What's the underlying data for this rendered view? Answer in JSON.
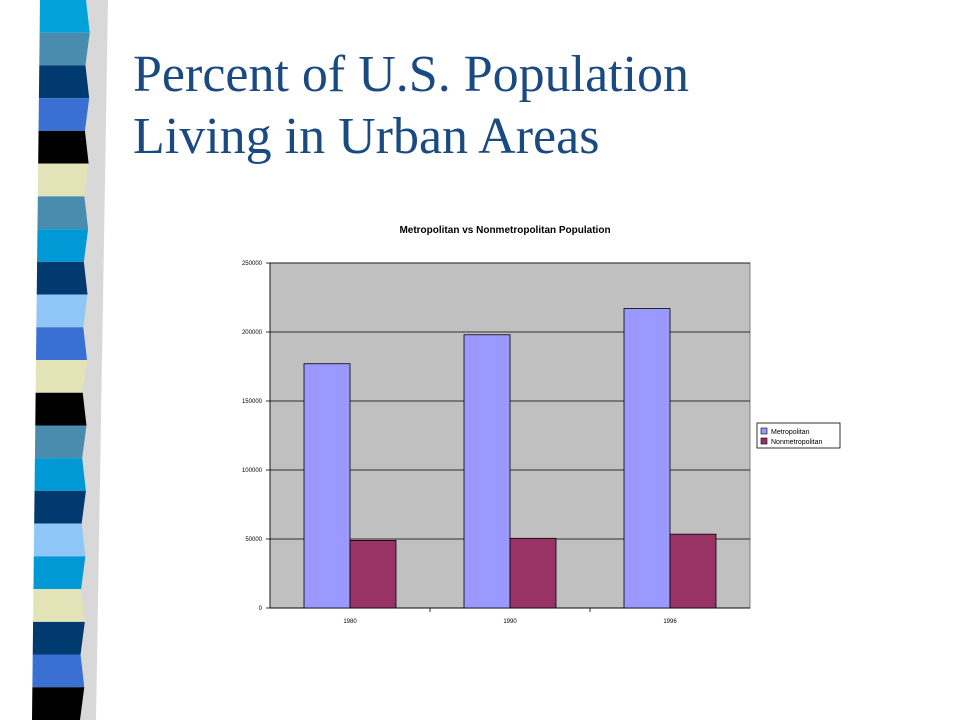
{
  "slide": {
    "title_line1": "Percent of U.S. Population",
    "title_line2": "Living in Urban Areas",
    "title_color": "#1a4a82"
  },
  "decoration": {
    "stripe_colors": [
      "#00a3d9",
      "#4a8cae",
      "#003a6e",
      "#3a6fd3",
      "#000000",
      "#e3e3b8",
      "#4a8cae",
      "#0099d6",
      "#003a6e",
      "#8fc8f8",
      "#3a6fd3",
      "#e3e3b8",
      "#000000",
      "#4a8cae",
      "#0099d6",
      "#003a6e",
      "#8fc8f8",
      "#0099d6",
      "#e3e3b8",
      "#003a6e",
      "#3a6fd3",
      "#000000"
    ]
  },
  "chart_data": {
    "type": "bar",
    "title": "Metropolitan vs Nonmetropolitan Population",
    "categories": [
      "1980",
      "1990",
      "1996"
    ],
    "series": [
      {
        "name": "Metropolitan",
        "values": [
          177000,
          198000,
          217000
        ],
        "color": "#9999ff"
      },
      {
        "name": "Nonmetropolitan",
        "values": [
          49000,
          50500,
          53500
        ],
        "color": "#993366"
      }
    ],
    "y_ticks": [
      "0",
      "50000",
      "100000",
      "150000",
      "200000",
      "250000"
    ],
    "ylim": [
      0,
      250000
    ],
    "grid": true,
    "plot_background": "#c0c0c0",
    "legend_position": "right"
  }
}
